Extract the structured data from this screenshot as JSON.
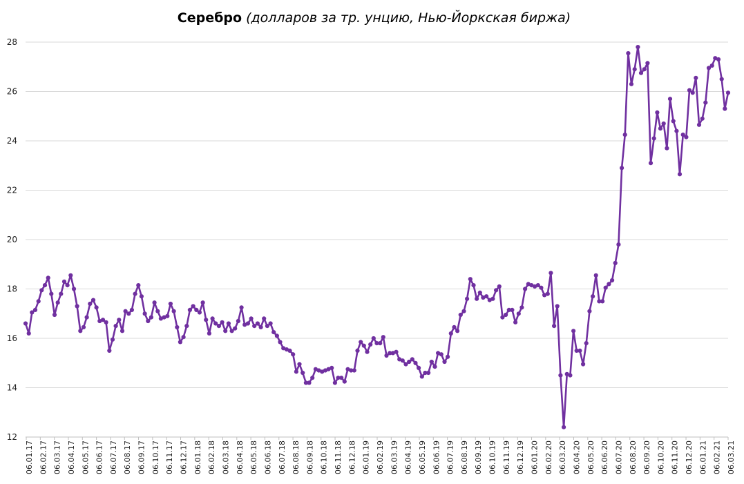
{
  "chart_data": {
    "type": "line",
    "title": "Серебро",
    "subtitle": "(долларов за тр. унцию, Нью-Йоркская биржа)",
    "xlabel": "",
    "ylabel": "",
    "ylim": [
      12,
      28
    ],
    "y_ticks": [
      "12",
      "14",
      "16",
      "18",
      "20",
      "22",
      "24",
      "26",
      "28"
    ],
    "grid": true,
    "legend": "none",
    "color": "#7030A0",
    "x_tick_labels": [
      "06.01.17",
      "06.02.17",
      "06.03.17",
      "06.04.17",
      "06.05.17",
      "06.06.17",
      "06.07.17",
      "06.08.17",
      "06.09.17",
      "06.10.17",
      "06.11.17",
      "06.12.17",
      "06.01.18",
      "06.02.18",
      "06.03.18",
      "06.04.18",
      "06.05.18",
      "06.06.18",
      "06.07.18",
      "06.08.18",
      "06.09.18",
      "06.10.18",
      "06.11.18",
      "06.12.18",
      "06.01.19",
      "06.02.19",
      "06.03.19",
      "06.04.19",
      "06.05.19",
      "06.06.19",
      "06.07.19",
      "06.08.19",
      "06.09.19",
      "06.10.19",
      "06.11.19",
      "06.12.19",
      "06.01.20",
      "06.02.20",
      "06.03.20",
      "06.04.20",
      "06.05.20",
      "06.06.20",
      "06.07.20",
      "06.08.20",
      "06.09.20",
      "06.10.20",
      "06.11.20",
      "06.12.20",
      "06.01.21",
      "06.02.21",
      "06.03.21"
    ],
    "values": [
      16.6,
      16.2,
      17.05,
      17.15,
      17.5,
      17.95,
      18.15,
      18.45,
      17.8,
      16.95,
      17.45,
      17.8,
      18.3,
      18.15,
      18.55,
      18.0,
      17.3,
      16.3,
      16.45,
      16.85,
      17.4,
      17.55,
      17.25,
      16.7,
      16.75,
      16.65,
      15.5,
      15.95,
      16.5,
      16.75,
      16.3,
      17.1,
      17.0,
      17.15,
      17.8,
      18.15,
      17.7,
      17.0,
      16.7,
      16.85,
      17.45,
      17.1,
      16.8,
      16.85,
      16.9,
      17.4,
      17.1,
      16.45,
      15.85,
      16.05,
      16.5,
      17.15,
      17.3,
      17.15,
      17.05,
      17.45,
      16.75,
      16.2,
      16.8,
      16.6,
      16.5,
      16.65,
      16.3,
      16.6,
      16.3,
      16.4,
      16.7,
      17.25,
      16.55,
      16.6,
      16.8,
      16.5,
      16.6,
      16.45,
      16.8,
      16.5,
      16.6,
      16.25,
      16.1,
      15.85,
      15.6,
      15.55,
      15.5,
      15.35,
      14.65,
      14.95,
      14.6,
      14.2,
      14.2,
      14.4,
      14.75,
      14.7,
      14.65,
      14.7,
      14.75,
      14.8,
      14.2,
      14.4,
      14.4,
      14.25,
      14.75,
      14.7,
      14.7,
      15.5,
      15.85,
      15.7,
      15.45,
      15.75,
      16.0,
      15.8,
      15.8,
      16.05,
      15.3,
      15.4,
      15.4,
      15.45,
      15.15,
      15.1,
      14.95,
      15.05,
      15.15,
      15.0,
      14.8,
      14.45,
      14.6,
      14.6,
      15.05,
      14.85,
      15.4,
      15.35,
      15.05,
      15.25,
      16.2,
      16.45,
      16.3,
      16.95,
      17.1,
      17.6,
      18.4,
      18.15,
      17.6,
      17.85,
      17.65,
      17.7,
      17.55,
      17.6,
      17.95,
      18.1,
      16.85,
      16.95,
      17.15,
      17.15,
      16.65,
      17.0,
      17.25,
      18.0,
      18.2,
      18.15,
      18.1,
      18.15,
      18.05,
      17.75,
      17.8,
      18.65,
      16.5,
      17.3,
      14.5,
      12.4,
      14.55,
      14.5,
      16.3,
      15.5,
      15.5,
      14.95,
      15.8,
      17.1,
      17.7,
      18.55,
      17.5,
      17.5,
      18.05,
      18.2,
      18.35,
      19.05,
      19.8,
      22.9,
      24.25,
      27.55,
      26.3,
      26.9,
      27.8,
      26.75,
      26.9,
      27.15,
      23.1,
      24.1,
      25.15,
      24.5,
      24.7,
      23.7,
      25.7,
      24.8,
      24.4,
      22.65,
      24.25,
      24.15,
      26.05,
      25.95,
      26.55,
      24.65,
      24.9,
      25.55,
      26.95,
      27.05,
      27.35,
      27.3,
      26.5,
      25.3,
      25.95
    ]
  }
}
